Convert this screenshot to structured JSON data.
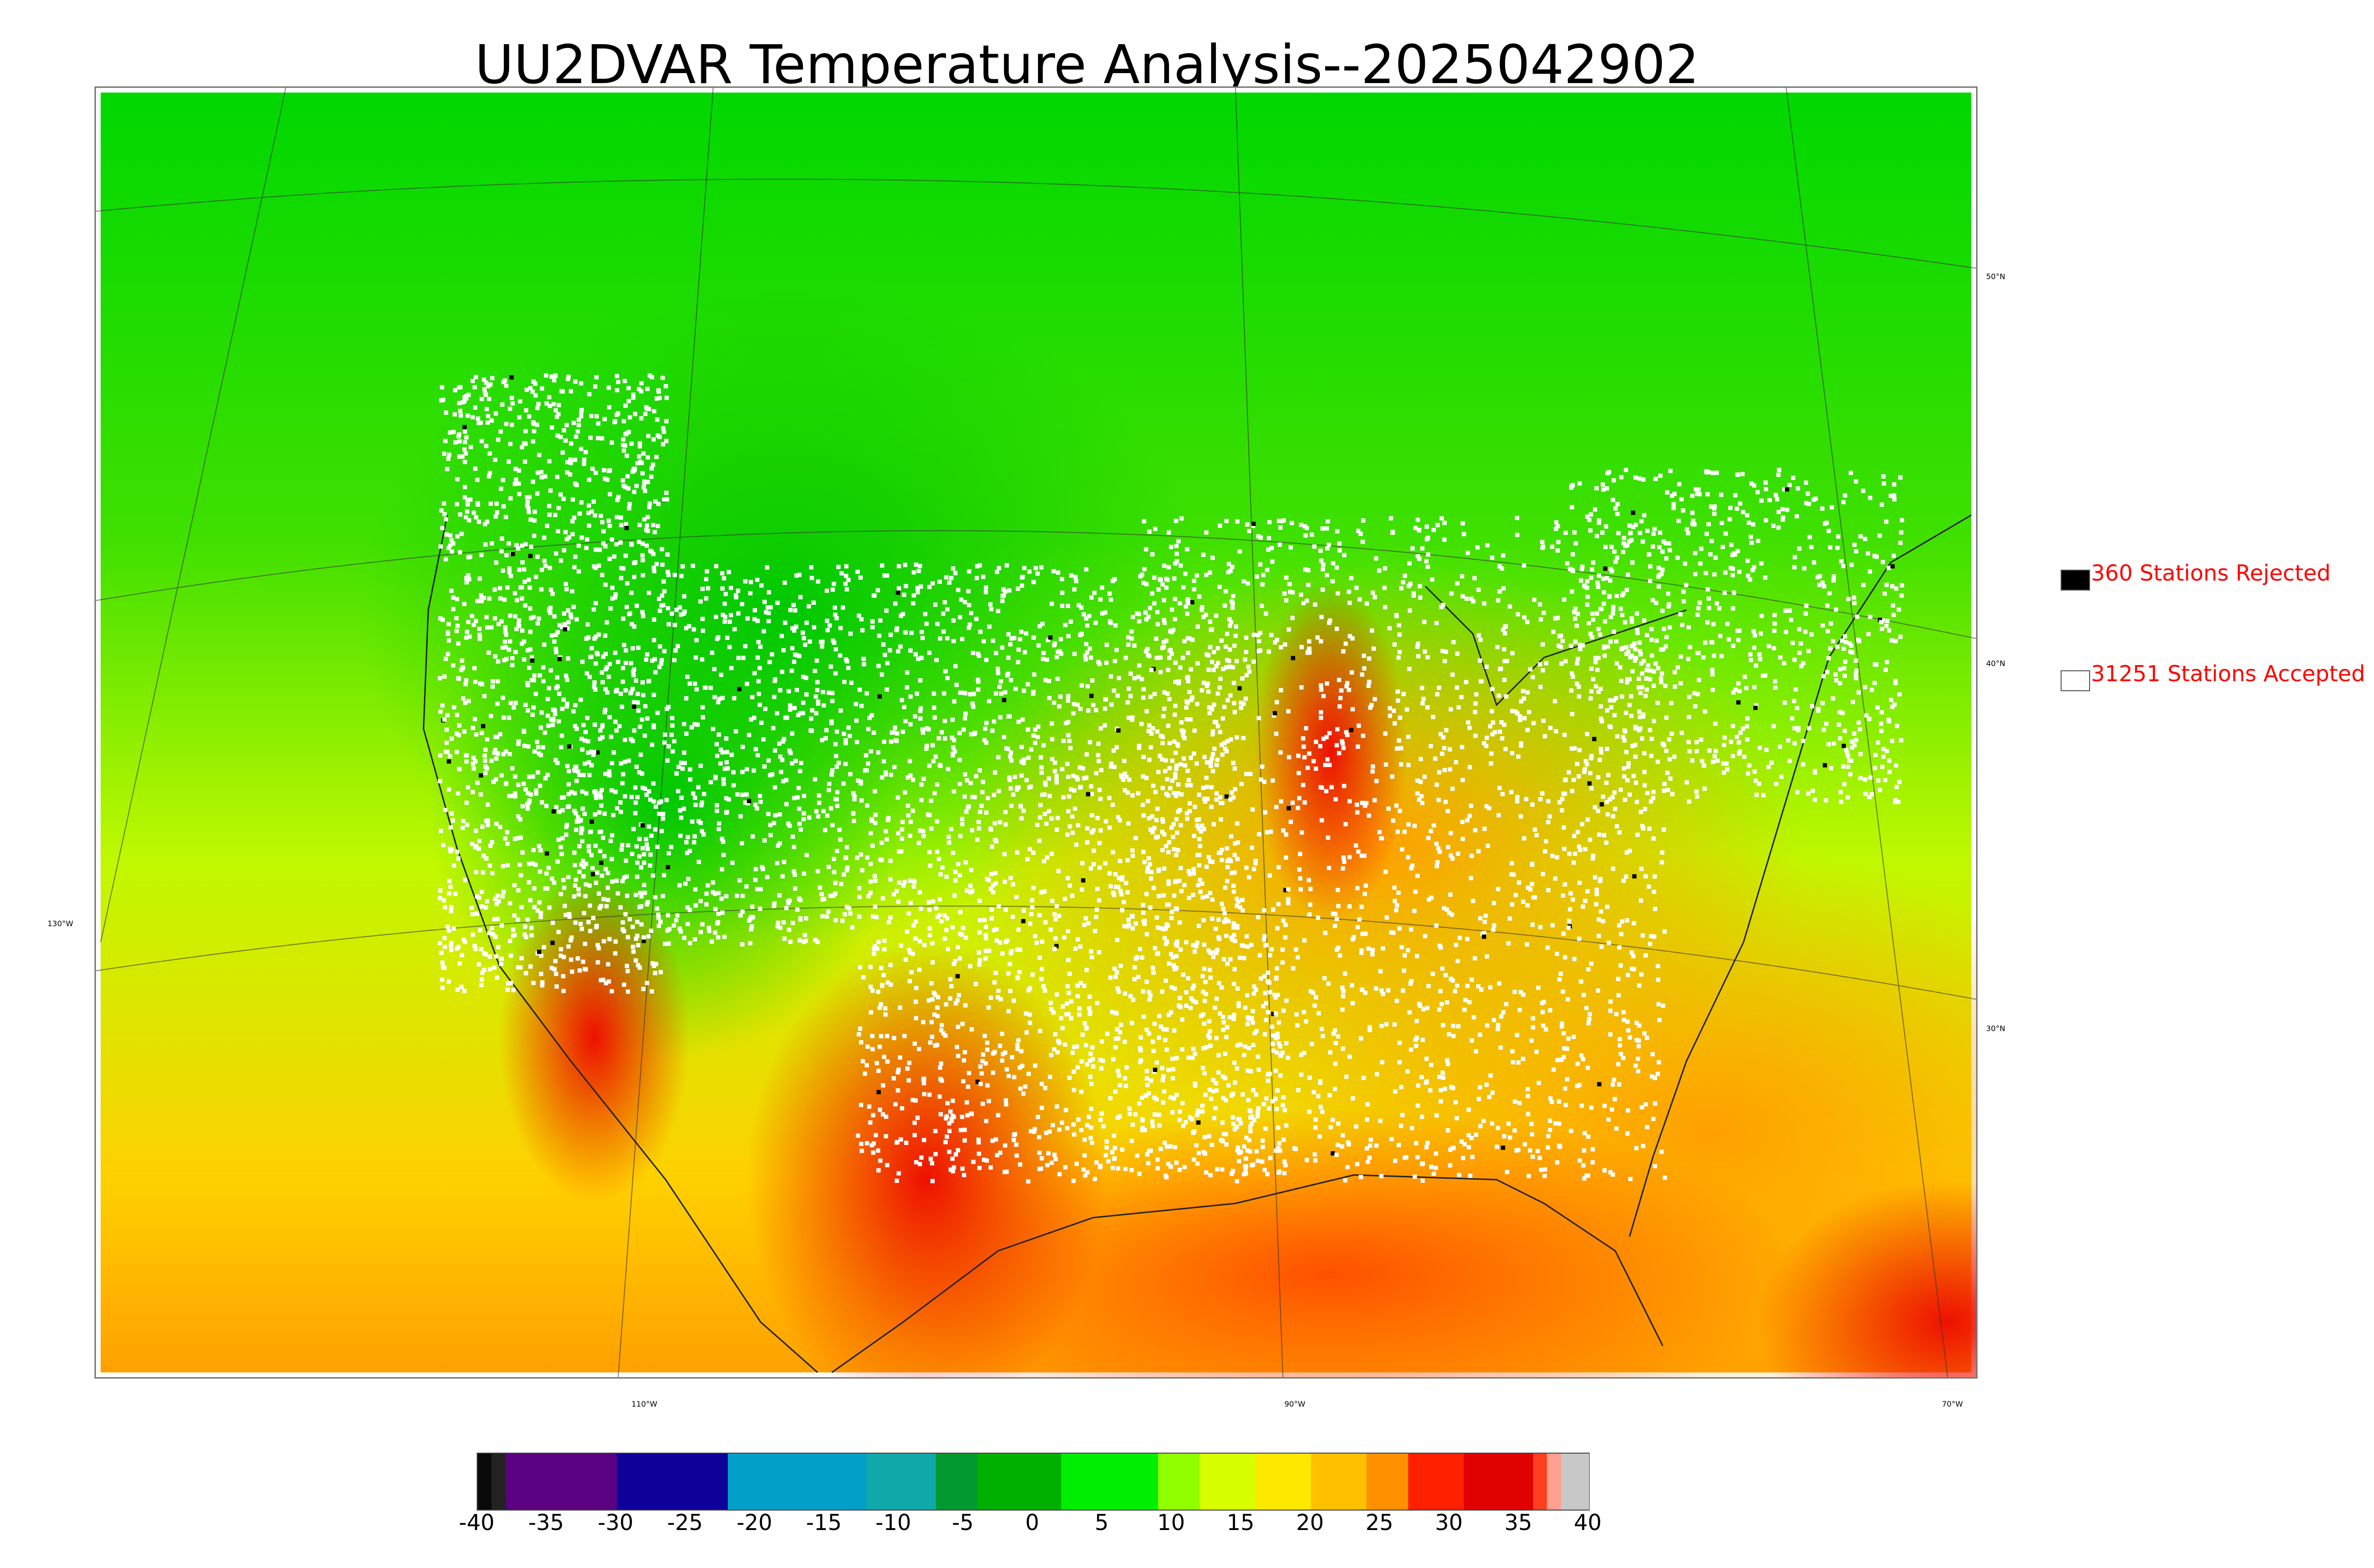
{
  "title": "UU2DVAR Temperature Analysis--2025042902",
  "legend": {
    "rejected": {
      "label": "360 Stations Rejected",
      "swatch": "#000000"
    },
    "accepted": {
      "label": "31251 Stations Accepted",
      "swatch": "#ffffff"
    }
  },
  "graticule_labels": {
    "lat": [
      "50°N",
      "40°N",
      "30°N"
    ],
    "lon_left": "130°W",
    "lon_bottom": [
      "110°W",
      "90°W",
      "70°W"
    ]
  },
  "colorbar": {
    "ticks": [
      "-40",
      "-35",
      "-30",
      "-25",
      "-20",
      "-15",
      "-10",
      "-5",
      "0",
      "5",
      "10",
      "15",
      "20",
      "25",
      "30",
      "35",
      "40"
    ],
    "range": [
      -40,
      40
    ],
    "segments": [
      {
        "from": -40,
        "to": -39,
        "color": "#0a0a0a"
      },
      {
        "from": -39,
        "to": -38,
        "color": "#222222"
      },
      {
        "from": -38,
        "to": -30,
        "color": "#5a0080"
      },
      {
        "from": -30,
        "to": -22,
        "color": "#10009a"
      },
      {
        "from": -22,
        "to": -12,
        "color": "#00a0c8"
      },
      {
        "from": -12,
        "to": -7,
        "color": "#10a8a8"
      },
      {
        "from": -7,
        "to": -4,
        "color": "#009a30"
      },
      {
        "from": -4,
        "to": 2,
        "color": "#00b000"
      },
      {
        "from": 2,
        "to": 9,
        "color": "#00ee00"
      },
      {
        "from": 9,
        "to": 12,
        "color": "#90ff00"
      },
      {
        "from": 12,
        "to": 16,
        "color": "#d8ff00"
      },
      {
        "from": 16,
        "to": 20,
        "color": "#ffe800"
      },
      {
        "from": 20,
        "to": 24,
        "color": "#ffc000"
      },
      {
        "from": 24,
        "to": 27,
        "color": "#ff9000"
      },
      {
        "from": 27,
        "to": 31,
        "color": "#ff2000"
      },
      {
        "from": 31,
        "to": 36,
        "color": "#e00000"
      },
      {
        "from": 36,
        "to": 37,
        "color": "#ff4020"
      },
      {
        "from": 37,
        "to": 38,
        "color": "#ffa090"
      },
      {
        "from": 38,
        "to": 40,
        "color": "#c8c8c8"
      }
    ]
  },
  "map_colors": {
    "cold_north": "#00a86b",
    "cool": "#00d000",
    "mild": "#c8ff00",
    "warm": "#ffc000",
    "hot": "#ff6000",
    "very_hot": "#e80000",
    "station_accepted": "#ffffff",
    "station_rejected": "#000000"
  }
}
